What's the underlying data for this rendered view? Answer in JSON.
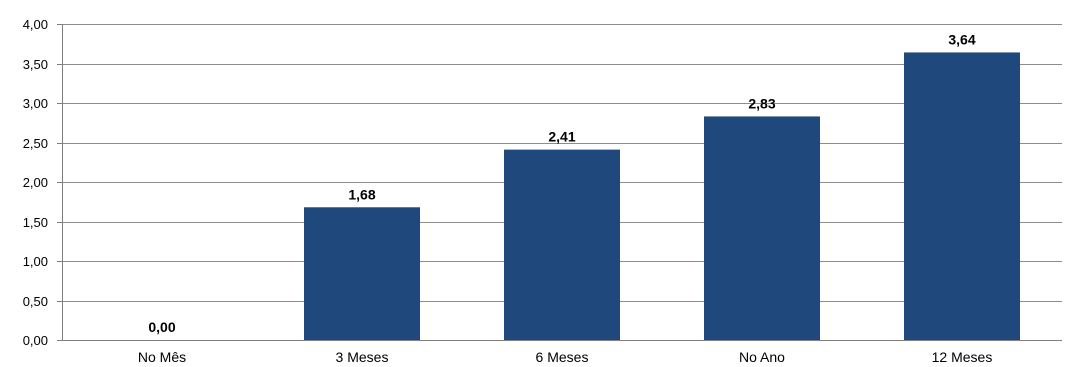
{
  "chart_data": {
    "type": "bar",
    "categories": [
      "No Mês",
      "3 Meses",
      "6 Meses",
      "No Ano",
      "12 Meses"
    ],
    "values": [
      0.0,
      1.68,
      2.41,
      2.83,
      3.64
    ],
    "value_labels": [
      "0,00",
      "1,68",
      "2,41",
      "2,83",
      "3,64"
    ],
    "y_ticks": [
      {
        "value": 0.0,
        "label": "0,00"
      },
      {
        "value": 0.5,
        "label": "0,50"
      },
      {
        "value": 1.0,
        "label": "1,00"
      },
      {
        "value": 1.5,
        "label": "1,50"
      },
      {
        "value": 2.0,
        "label": "2,00"
      },
      {
        "value": 2.5,
        "label": "2,50"
      },
      {
        "value": 3.0,
        "label": "3,00"
      },
      {
        "value": 3.5,
        "label": "3,50"
      },
      {
        "value": 4.0,
        "label": "4,00"
      }
    ],
    "ylim": [
      0,
      4
    ],
    "grid": true,
    "bar_color": "#1f497d",
    "grid_color": "#8c8c8c",
    "axis_color": "#7f7f7f"
  }
}
